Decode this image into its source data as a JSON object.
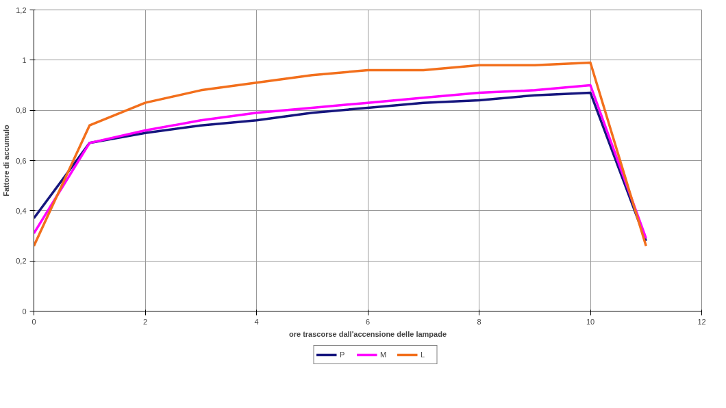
{
  "chart_data": {
    "type": "line",
    "xlabel": "ore trascorse dall'accensione delle lampade",
    "ylabel": "Fattore di accumulo",
    "x": [
      0,
      1,
      2,
      3,
      4,
      5,
      6,
      7,
      8,
      9,
      10,
      11
    ],
    "series": [
      {
        "name": "P",
        "color": "#16167e",
        "values": [
          0.37,
          0.67,
          0.71,
          0.74,
          0.76,
          0.79,
          0.81,
          0.83,
          0.84,
          0.86,
          0.87,
          0.28
        ]
      },
      {
        "name": "M",
        "color": "#ff00ff",
        "values": [
          0.31,
          0.67,
          0.72,
          0.76,
          0.79,
          0.81,
          0.83,
          0.85,
          0.87,
          0.88,
          0.9,
          0.29
        ]
      },
      {
        "name": "L",
        "color": "#f26f1c",
        "values": [
          0.26,
          0.74,
          0.83,
          0.88,
          0.91,
          0.94,
          0.96,
          0.96,
          0.98,
          0.98,
          0.99,
          0.26
        ]
      }
    ],
    "xlim": [
      0,
      12
    ],
    "xticks": [
      0,
      2,
      4,
      6,
      8,
      10,
      12
    ],
    "ylim": [
      0,
      1.2
    ],
    "yticks": [
      0,
      {
        "value": 0.2,
        "label": "0,2"
      },
      {
        "value": 0.4,
        "label": "0,4"
      },
      {
        "value": 0.6,
        "label": "0,6"
      },
      {
        "value": 0.8,
        "label": "0,8"
      },
      1,
      {
        "value": 1.2,
        "label": "1,2"
      }
    ],
    "grid": true,
    "legend": "bottom",
    "marker": "none",
    "line_style": "solid"
  }
}
